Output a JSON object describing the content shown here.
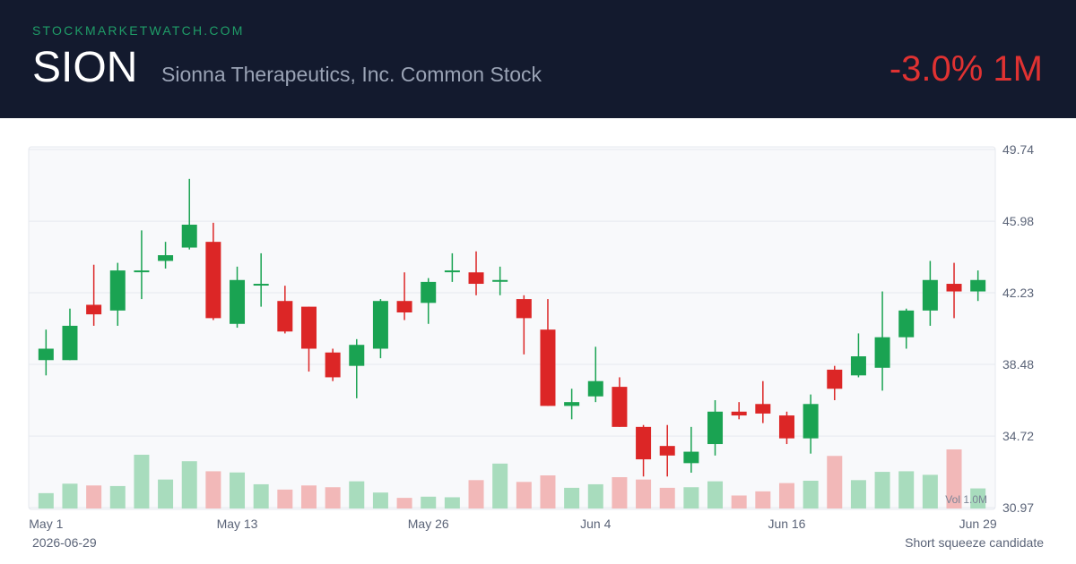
{
  "header": {
    "site": "STOCKMARKETWATCH.COM",
    "ticker": "SION",
    "company": "Sionna Therapeutics, Inc. Common Stock",
    "change": "-3.0% 1M"
  },
  "footer": {
    "date": "2026-06-29",
    "note": "Short squeeze candidate"
  },
  "colors": {
    "up": "#1aa352",
    "down": "#dc2626",
    "up_volume": "#a8dcbd",
    "down_volume": "#f2b8b8"
  },
  "chart_data": {
    "type": "candlestick",
    "y_ticks": [
      "49.74",
      "45.98",
      "42.23",
      "38.48",
      "34.72",
      "30.97"
    ],
    "ylim": [
      30.97,
      49.74
    ],
    "x_tick_labels": [
      {
        "label": "May 1",
        "index": 0
      },
      {
        "label": "May 13",
        "index": 8
      },
      {
        "label": "May 26",
        "index": 16
      },
      {
        "label": "Jun 4",
        "index": 23
      },
      {
        "label": "Jun 16",
        "index": 31
      },
      {
        "label": "Jun 29",
        "index": 39
      }
    ],
    "volume_label": "Vol 1.0M",
    "volume_max": 1.0,
    "grid": true,
    "candles": [
      {
        "o": 38.7,
        "h": 40.3,
        "l": 37.9,
        "c": 39.3,
        "v": 0.26
      },
      {
        "o": 38.7,
        "h": 41.4,
        "l": 38.7,
        "c": 40.5,
        "v": 0.42
      },
      {
        "o": 41.6,
        "h": 43.7,
        "l": 40.5,
        "c": 41.1,
        "v": 0.39
      },
      {
        "o": 41.3,
        "h": 43.8,
        "l": 40.5,
        "c": 43.4,
        "v": 0.38
      },
      {
        "o": 43.4,
        "h": 45.5,
        "l": 41.9,
        "c": 43.4,
        "v": 0.91
      },
      {
        "o": 43.9,
        "h": 44.9,
        "l": 43.5,
        "c": 44.2,
        "v": 0.49
      },
      {
        "o": 44.6,
        "h": 48.2,
        "l": 44.5,
        "c": 45.8,
        "v": 0.8
      },
      {
        "o": 44.9,
        "h": 45.9,
        "l": 40.8,
        "c": 40.9,
        "v": 0.63
      },
      {
        "o": 40.6,
        "h": 43.6,
        "l": 40.4,
        "c": 42.9,
        "v": 0.61
      },
      {
        "o": 42.7,
        "h": 44.3,
        "l": 41.5,
        "c": 42.7,
        "v": 0.41
      },
      {
        "o": 41.8,
        "h": 42.6,
        "l": 40.1,
        "c": 40.2,
        "v": 0.32
      },
      {
        "o": 41.5,
        "h": 41.5,
        "l": 38.1,
        "c": 39.3,
        "v": 0.39
      },
      {
        "o": 39.1,
        "h": 39.3,
        "l": 37.6,
        "c": 37.8,
        "v": 0.36
      },
      {
        "o": 38.4,
        "h": 39.8,
        "l": 36.7,
        "c": 39.5,
        "v": 0.46
      },
      {
        "o": 39.3,
        "h": 41.9,
        "l": 38.8,
        "c": 41.8,
        "v": 0.27
      },
      {
        "o": 41.8,
        "h": 43.3,
        "l": 40.8,
        "c": 41.2,
        "v": 0.18
      },
      {
        "o": 41.7,
        "h": 43.0,
        "l": 40.6,
        "c": 42.8,
        "v": 0.2
      },
      {
        "o": 43.4,
        "h": 44.3,
        "l": 42.8,
        "c": 43.4,
        "v": 0.19
      },
      {
        "o": 43.3,
        "h": 44.4,
        "l": 42.1,
        "c": 42.7,
        "v": 0.48
      },
      {
        "o": 42.9,
        "h": 43.6,
        "l": 42.1,
        "c": 42.9,
        "v": 0.76
      },
      {
        "o": 41.9,
        "h": 42.1,
        "l": 39.0,
        "c": 40.9,
        "v": 0.45
      },
      {
        "o": 40.3,
        "h": 41.9,
        "l": 36.3,
        "c": 36.3,
        "v": 0.56
      },
      {
        "o": 36.3,
        "h": 37.2,
        "l": 35.6,
        "c": 36.5,
        "v": 0.35
      },
      {
        "o": 36.8,
        "h": 39.4,
        "l": 36.5,
        "c": 37.6,
        "v": 0.41
      },
      {
        "o": 37.3,
        "h": 37.8,
        "l": 35.2,
        "c": 35.2,
        "v": 0.53
      },
      {
        "o": 35.2,
        "h": 35.3,
        "l": 32.6,
        "c": 33.5,
        "v": 0.49
      },
      {
        "o": 34.2,
        "h": 35.3,
        "l": 32.6,
        "c": 33.7,
        "v": 0.35
      },
      {
        "o": 33.3,
        "h": 35.2,
        "l": 32.8,
        "c": 33.9,
        "v": 0.36
      },
      {
        "o": 34.3,
        "h": 36.6,
        "l": 33.7,
        "c": 36.0,
        "v": 0.46
      },
      {
        "o": 36.0,
        "h": 36.5,
        "l": 35.6,
        "c": 35.8,
        "v": 0.22
      },
      {
        "o": 36.4,
        "h": 37.6,
        "l": 35.4,
        "c": 35.9,
        "v": 0.29
      },
      {
        "o": 35.8,
        "h": 36.0,
        "l": 34.3,
        "c": 34.6,
        "v": 0.43
      },
      {
        "o": 34.6,
        "h": 36.9,
        "l": 33.8,
        "c": 36.4,
        "v": 0.47
      },
      {
        "o": 38.2,
        "h": 38.4,
        "l": 36.6,
        "c": 37.2,
        "v": 0.89
      },
      {
        "o": 37.9,
        "h": 40.1,
        "l": 37.8,
        "c": 38.9,
        "v": 0.48
      },
      {
        "o": 38.3,
        "h": 42.3,
        "l": 37.1,
        "c": 39.9,
        "v": 0.62
      },
      {
        "o": 39.9,
        "h": 41.4,
        "l": 39.3,
        "c": 41.3,
        "v": 0.63
      },
      {
        "o": 41.3,
        "h": 43.9,
        "l": 40.5,
        "c": 42.9,
        "v": 0.57
      },
      {
        "o": 42.7,
        "h": 43.8,
        "l": 40.9,
        "c": 42.3,
        "v": 1.0
      },
      {
        "o": 42.3,
        "h": 43.4,
        "l": 41.8,
        "c": 42.9,
        "v": 0.34
      }
    ]
  }
}
